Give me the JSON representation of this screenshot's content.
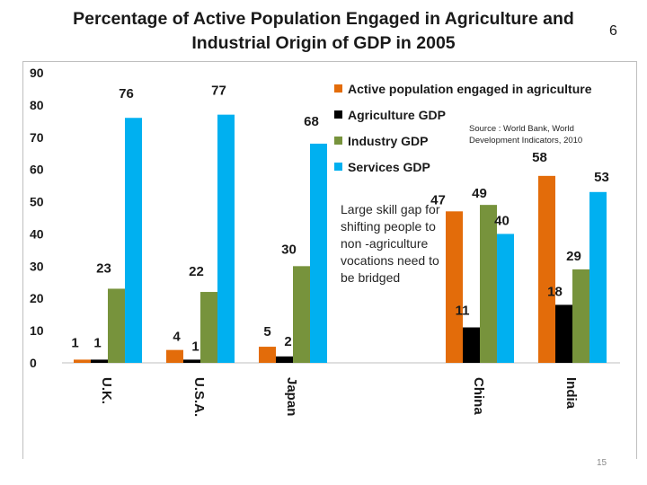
{
  "slide": {
    "title_line1": "Percentage of  Active Population Engaged in Agriculture and",
    "title_line2": "Industrial Origin of GDP in 2005",
    "slide_number": "6",
    "page_number": "15"
  },
  "source_line1": "Source : World  Bank, World",
  "source_line2": "Development Indicators, 2010",
  "annotation": "Large skill gap for shifting people to non -agriculture vocations need to be bridged",
  "chart_data": {
    "type": "bar",
    "title": "Percentage of  Active Population Engaged in Agriculture and Industrial Origin of GDP in 2005",
    "xlabel": "",
    "ylabel": "",
    "ylim": [
      0,
      90
    ],
    "yticks": [
      0,
      10,
      20,
      30,
      40,
      50,
      60,
      70,
      80,
      90
    ],
    "grid": false,
    "legend_position": "top-right",
    "categories": [
      "U.K.",
      "U.S.A.",
      "Japan",
      "China",
      "India"
    ],
    "series": [
      {
        "name": "Active population engaged in agriculture",
        "color": "#E36C0A",
        "values": [
          1,
          4,
          5,
          47,
          58
        ]
      },
      {
        "name": "Agriculture GDP",
        "color": "#000000",
        "values": [
          1,
          1,
          2,
          11,
          18
        ]
      },
      {
        "name": "Industry GDP",
        "color": "#77933C",
        "values": [
          23,
          22,
          30,
          49,
          29
        ]
      },
      {
        "name": "Services GDP",
        "color": "#00B0F0",
        "values": [
          76,
          77,
          68,
          40,
          53
        ]
      }
    ]
  }
}
